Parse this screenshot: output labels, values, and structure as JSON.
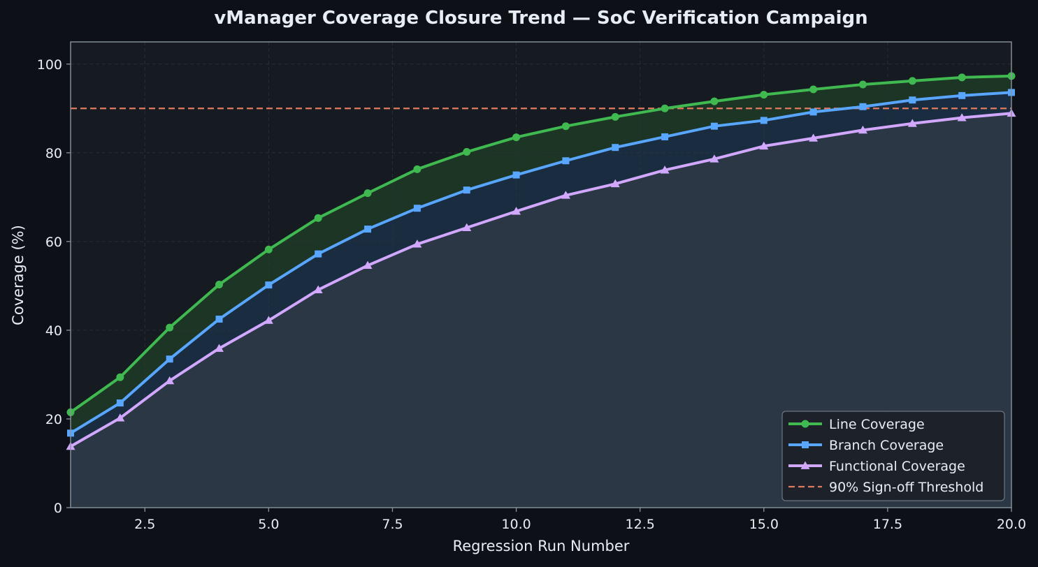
{
  "chart_data": {
    "type": "line",
    "title": "vManager Coverage Closure Trend — SoC Verification Campaign",
    "xlabel": "Regression Run Number",
    "ylabel": "Coverage (%)",
    "xlim": [
      1,
      20
    ],
    "ylim": [
      0,
      105
    ],
    "xticks": [
      2.5,
      5.0,
      7.5,
      10.0,
      12.5,
      15.0,
      17.5,
      20.0
    ],
    "xtick_labels": [
      "2.5",
      "5.0",
      "7.5",
      "10.0",
      "12.5",
      "15.0",
      "17.5",
      "20.0"
    ],
    "yticks": [
      0,
      20,
      40,
      60,
      80,
      100
    ],
    "ytick_labels": [
      "0",
      "20",
      "40",
      "60",
      "80",
      "100"
    ],
    "grid": true,
    "legend_position": "bottom-right",
    "x": [
      1,
      2,
      3,
      4,
      5,
      6,
      7,
      8,
      9,
      10,
      11,
      12,
      13,
      14,
      15,
      16,
      17,
      18,
      19,
      20
    ],
    "series": [
      {
        "name": "Line Coverage",
        "color": "#3fb950",
        "marker": "circle",
        "values": [
          21.5,
          29.4,
          40.6,
          50.3,
          58.2,
          65.3,
          70.9,
          76.3,
          80.2,
          83.5,
          86.0,
          88.1,
          90.0,
          91.6,
          93.1,
          94.3,
          95.4,
          96.2,
          97.0,
          97.3
        ]
      },
      {
        "name": "Branch Coverage",
        "color": "#58a6ff",
        "marker": "square",
        "values": [
          16.8,
          23.6,
          33.5,
          42.5,
          50.2,
          57.2,
          62.8,
          67.5,
          71.6,
          75.0,
          78.2,
          81.2,
          83.6,
          86.0,
          87.3,
          89.2,
          90.4,
          91.9,
          92.9,
          93.6
        ]
      },
      {
        "name": "Functional Coverage",
        "color": "#d2a8ff",
        "marker": "triangle",
        "values": [
          13.8,
          20.2,
          28.6,
          35.9,
          42.2,
          49.1,
          54.6,
          59.4,
          63.1,
          66.8,
          70.4,
          73.0,
          76.1,
          78.6,
          81.5,
          83.3,
          85.1,
          86.6,
          87.9,
          88.9
        ]
      }
    ],
    "threshold": {
      "name": "90% Sign-off Threshold",
      "value": 90,
      "color": "#e07a5f",
      "style": "dashed"
    },
    "colors": {
      "background": "#0d1117",
      "plot_background": "#161b22",
      "grid": "#30363d",
      "axis": "#8b949e",
      "text": "#e6edf3",
      "legend_background": "#1c2128",
      "band_line_branch": "#1f3a24",
      "band_branch_functional": "#1a2f45",
      "band_functional_base": "#2d3b48"
    }
  }
}
